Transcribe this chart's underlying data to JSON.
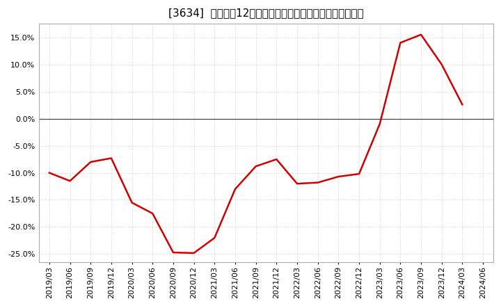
{
  "title": "[3634]  売上高の12か月移動合計の対前年同期増減率の推移",
  "x_labels": [
    "2019/03",
    "2019/06",
    "2019/09",
    "2019/12",
    "2020/03",
    "2020/06",
    "2020/09",
    "2020/12",
    "2021/03",
    "2021/06",
    "2021/09",
    "2021/12",
    "2022/03",
    "2022/06",
    "2022/09",
    "2022/12",
    "2023/03",
    "2023/06",
    "2023/09",
    "2023/12",
    "2024/03",
    "2024/06"
  ],
  "values": [
    -0.1,
    -0.115,
    -0.08,
    -0.073,
    -0.155,
    -0.175,
    -0.247,
    -0.248,
    -0.22,
    -0.13,
    -0.088,
    -0.075,
    -0.12,
    -0.118,
    -0.107,
    -0.102,
    -0.01,
    0.14,
    0.155,
    0.1,
    0.026,
    null
  ],
  "line_color": "#cc0000",
  "line_width": 1.8,
  "background_color": "#ffffff",
  "plot_bg_color": "#ffffff",
  "grid_color": "#bbbbbb",
  "ylim": [
    -0.265,
    0.175
  ],
  "yticks": [
    -0.25,
    -0.2,
    -0.15,
    -0.1,
    -0.05,
    0.0,
    0.05,
    0.1,
    0.15
  ],
  "title_fontsize": 11,
  "tick_fontsize": 8
}
